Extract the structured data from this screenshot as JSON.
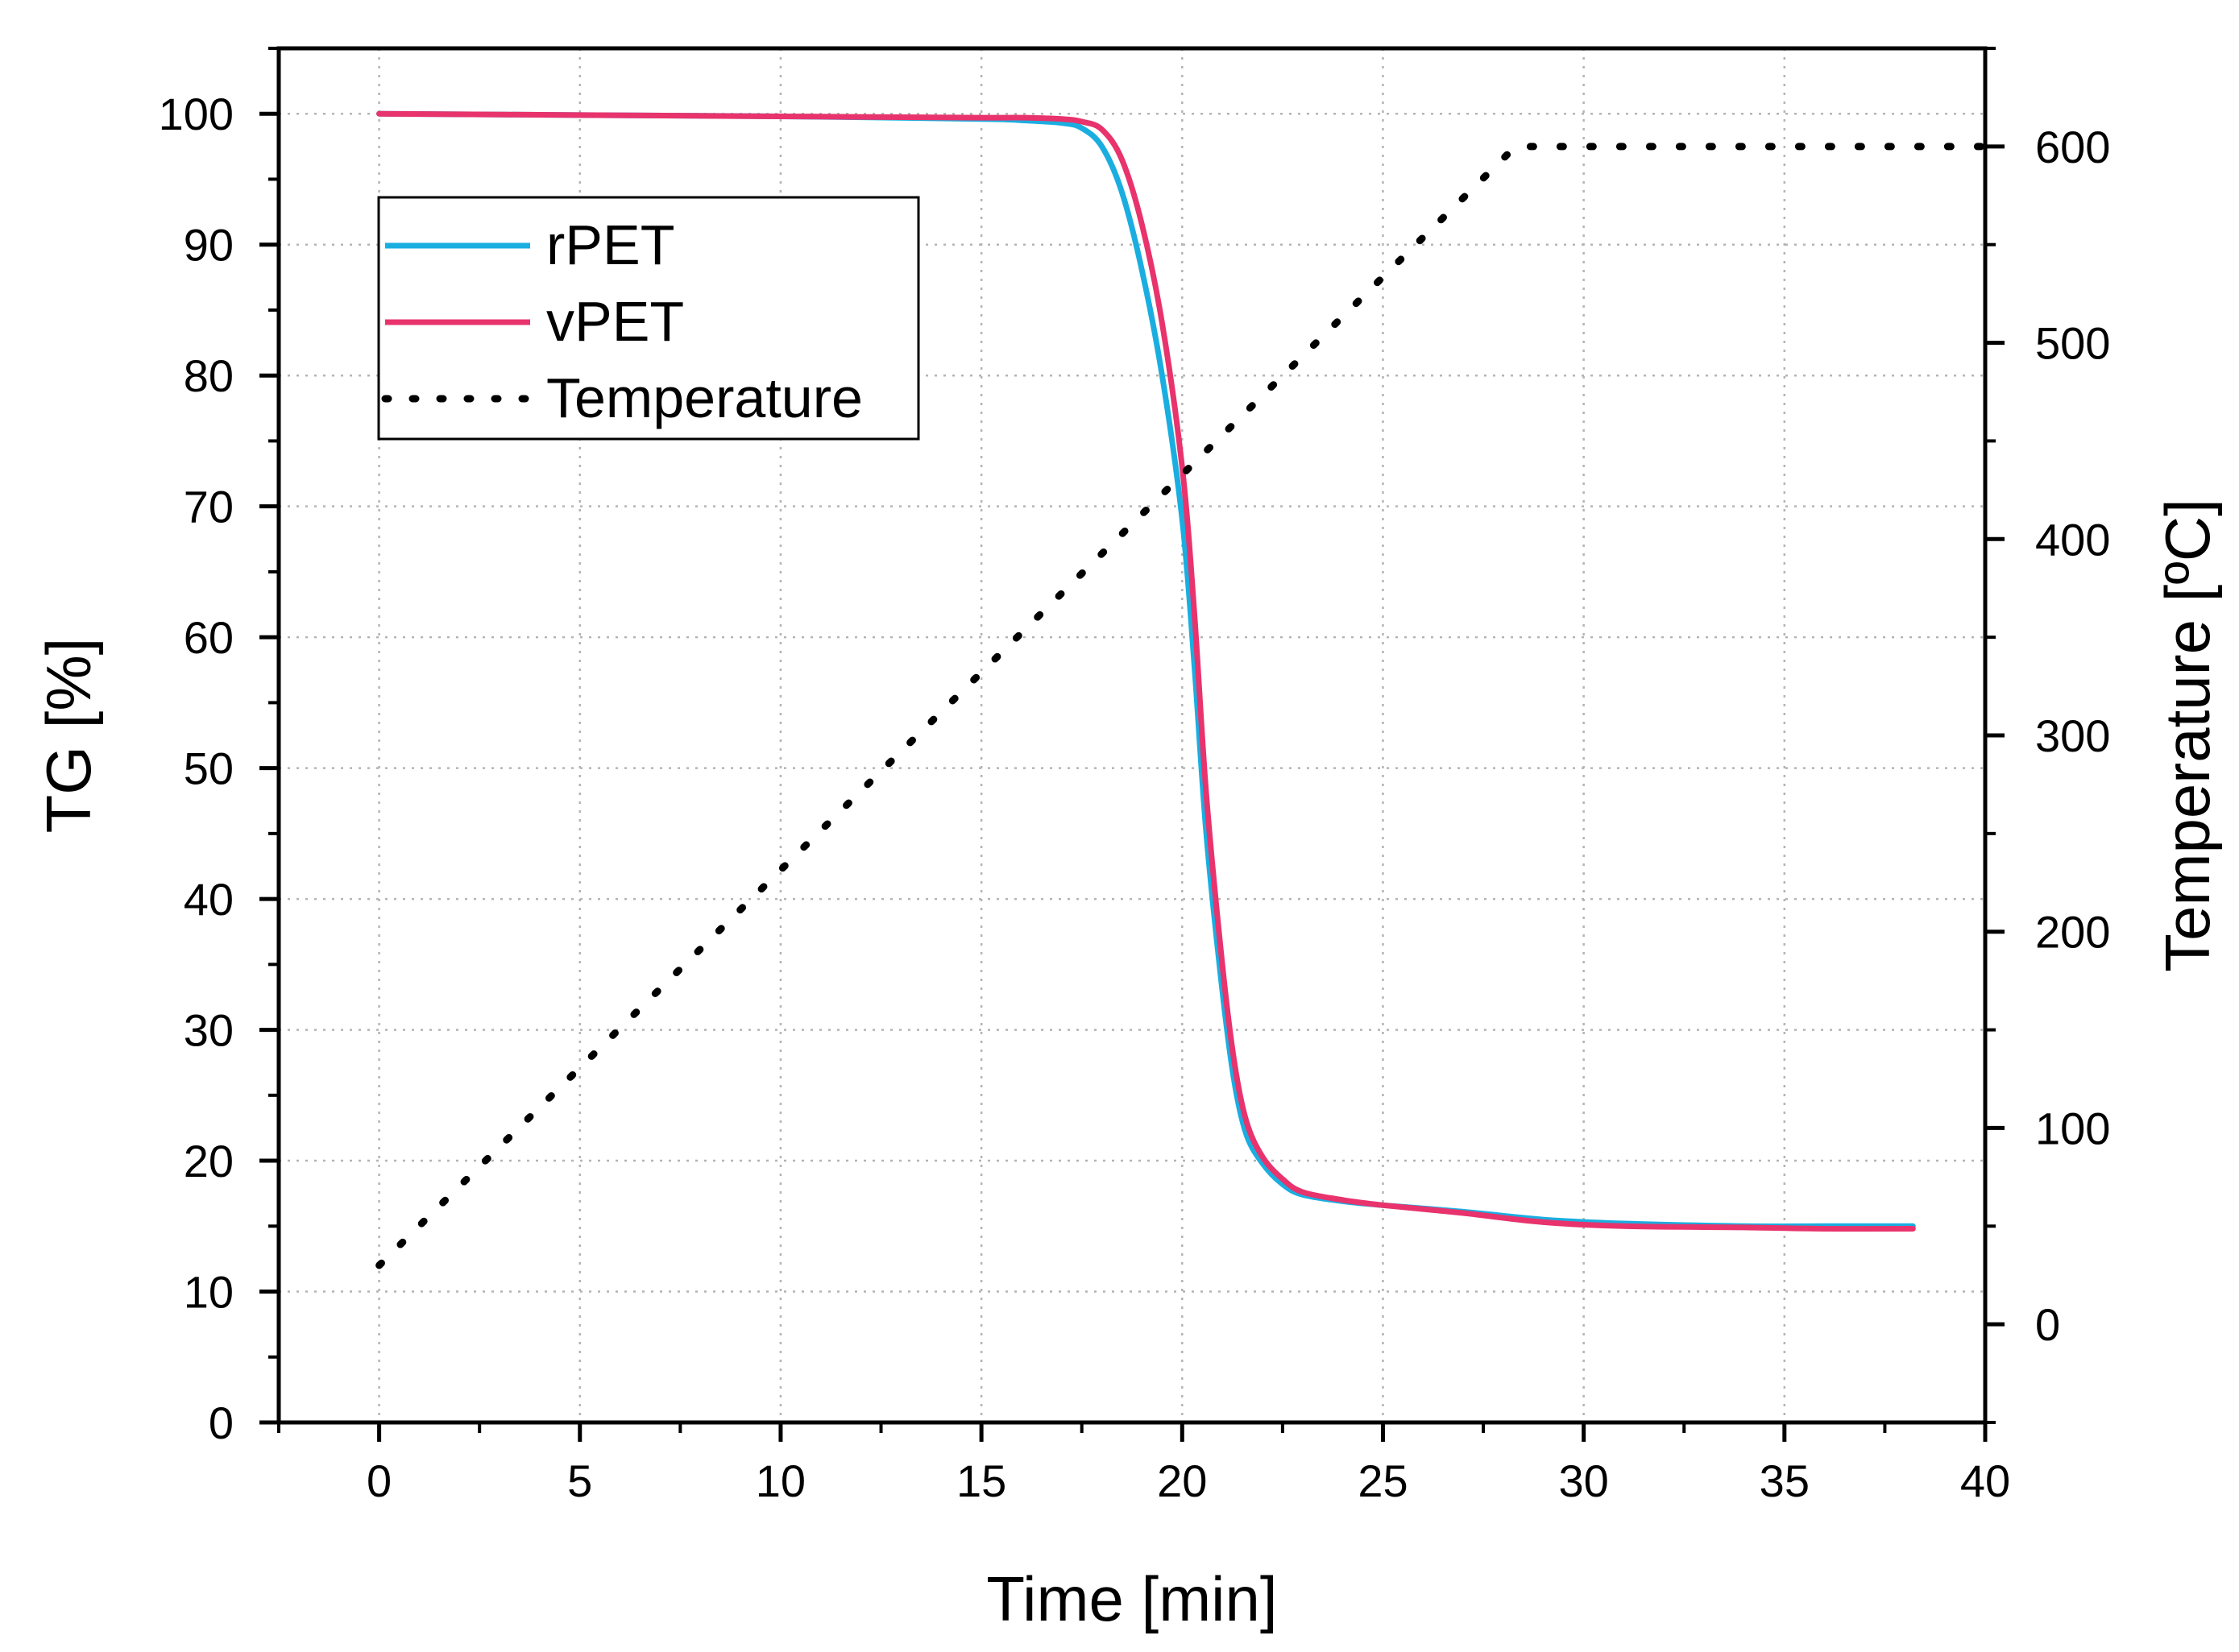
{
  "chart_data": {
    "type": "line",
    "title": "",
    "xlabel": "Time [min]",
    "ylabel": "TG [%]",
    "y2label": "Temperature [ºC]",
    "xlim": [
      -2.5,
      40
    ],
    "ylim": [
      0,
      105
    ],
    "y2lim": [
      -50,
      650
    ],
    "xticks": [
      0,
      5,
      10,
      15,
      20,
      25,
      30,
      35,
      40
    ],
    "yticks": [
      0,
      10,
      20,
      30,
      40,
      50,
      60,
      70,
      80,
      90,
      100
    ],
    "y2ticks": [
      0,
      100,
      200,
      300,
      400,
      500,
      600
    ],
    "grid": true,
    "legend_position": "top-left",
    "series": [
      {
        "name": "rPET",
        "axis": "left",
        "color": "#1AAEE0",
        "style": "solid",
        "x": [
          0,
          5,
          10,
          15,
          16,
          17,
          17.5,
          18,
          18.5,
          19,
          19.5,
          20,
          20.3,
          20.6,
          21,
          21.3,
          21.6,
          22,
          22.5,
          23,
          24,
          25,
          27,
          29,
          31,
          34,
          36,
          38.2
        ],
        "y": [
          100,
          99.9,
          99.8,
          99.6,
          99.5,
          99.3,
          98.9,
          97.5,
          94,
          88,
          80,
          69,
          58,
          45,
          33,
          26,
          22,
          19.8,
          18.2,
          17.4,
          16.9,
          16.6,
          16.1,
          15.5,
          15.2,
          15.0,
          15.0,
          15.0
        ]
      },
      {
        "name": "vPET",
        "axis": "left",
        "color": "#E8336D",
        "style": "solid",
        "x": [
          0,
          5,
          10,
          15,
          16,
          17,
          17.5,
          18,
          18.5,
          19,
          19.5,
          20,
          20.3,
          20.6,
          21,
          21.3,
          21.6,
          22,
          22.5,
          23,
          24,
          25,
          27,
          29,
          31,
          34,
          36,
          38.2
        ],
        "y": [
          100,
          99.9,
          99.8,
          99.7,
          99.7,
          99.6,
          99.4,
          98.8,
          96.5,
          91.5,
          84,
          73,
          62,
          48,
          35,
          27.5,
          23,
          20.3,
          18.6,
          17.6,
          17.0,
          16.6,
          16.0,
          15.3,
          15.0,
          14.9,
          14.8,
          14.8
        ]
      },
      {
        "name": "Temperature",
        "axis": "right",
        "color": "#000000",
        "style": "dotted",
        "x": [
          0,
          28.3,
          40
        ],
        "y": [
          30,
          600,
          600
        ]
      }
    ]
  }
}
